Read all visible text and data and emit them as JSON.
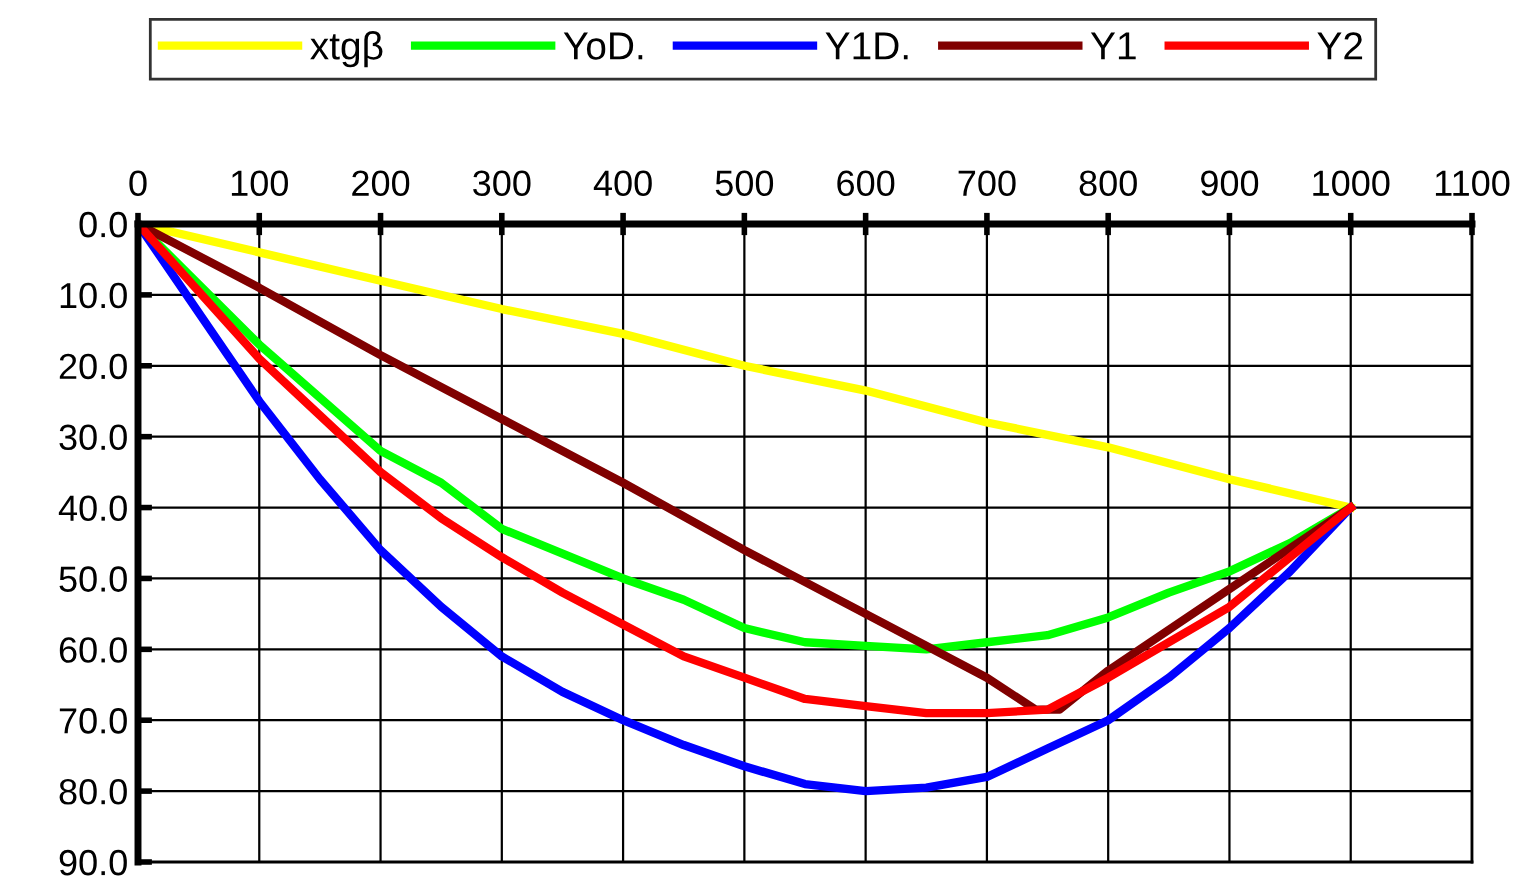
{
  "chart_data": {
    "type": "line",
    "legend": "top",
    "grid": true,
    "marker": "none",
    "line_style": "solid",
    "xlim": [
      0,
      1100
    ],
    "xticks": [
      0,
      100,
      200,
      300,
      400,
      500,
      600,
      700,
      800,
      900,
      1000,
      1100
    ],
    "ylim": [
      90,
      0
    ],
    "yticks": [
      {
        "value": 0,
        "label": "0.0"
      },
      {
        "value": 10,
        "label": "10.0"
      },
      {
        "value": 20,
        "label": "20.0"
      },
      {
        "value": 30,
        "label": "30.0"
      },
      {
        "value": 40,
        "label": "40.0"
      },
      {
        "value": 50,
        "label": "50.0"
      },
      {
        "value": 60,
        "label": "60.0"
      },
      {
        "value": 70,
        "label": "70.0"
      },
      {
        "value": 80,
        "label": "80.0"
      },
      {
        "value": 90,
        "label": "90.0"
      }
    ],
    "series": [
      {
        "name": "xtgβ",
        "color": "#ffff00",
        "x": [
          0,
          100,
          200,
          300,
          400,
          500,
          600,
          700,
          800,
          900,
          1000
        ],
        "values": [
          0,
          4,
          8,
          12,
          15.5,
          20,
          23.5,
          28,
          31.5,
          36,
          40
        ]
      },
      {
        "name": "YoD.",
        "color": "#00ff00",
        "x": [
          0,
          100,
          200,
          250,
          300,
          400,
          450,
          500,
          550,
          600,
          650,
          700,
          750,
          800,
          850,
          900,
          950,
          1000
        ],
        "values": [
          0,
          17,
          32,
          36.5,
          43,
          50,
          53,
          57,
          59,
          59.5,
          60,
          59,
          58,
          55.5,
          52,
          49,
          45,
          40
        ]
      },
      {
        "name": "Y1D.",
        "color": "#0000ff",
        "x": [
          0,
          100,
          150,
          200,
          250,
          300,
          350,
          400,
          450,
          500,
          550,
          600,
          650,
          700,
          750,
          800,
          850,
          900,
          950,
          1000
        ],
        "values": [
          0,
          25,
          36,
          46,
          54,
          61,
          66,
          70,
          73.5,
          76.5,
          79,
          80,
          79.5,
          78,
          74,
          70,
          64,
          57,
          49,
          40
        ]
      },
      {
        "name": "Y1",
        "color": "#800000",
        "x": [
          0,
          100,
          200,
          300,
          400,
          500,
          600,
          700,
          740,
          760,
          800,
          900,
          1000
        ],
        "values": [
          0,
          9,
          18.5,
          27.5,
          36.5,
          46,
          55,
          64,
          68.5,
          68.5,
          63,
          51.5,
          40
        ]
      },
      {
        "name": "Y2",
        "color": "#ff0000",
        "x": [
          0,
          100,
          150,
          200,
          250,
          300,
          350,
          400,
          450,
          500,
          550,
          600,
          650,
          700,
          750,
          800,
          900,
          1000
        ],
        "values": [
          0,
          19,
          27,
          35,
          41.5,
          47,
          52,
          56.5,
          61,
          64,
          67,
          68,
          69,
          69,
          68.5,
          64,
          54,
          40
        ]
      }
    ]
  }
}
